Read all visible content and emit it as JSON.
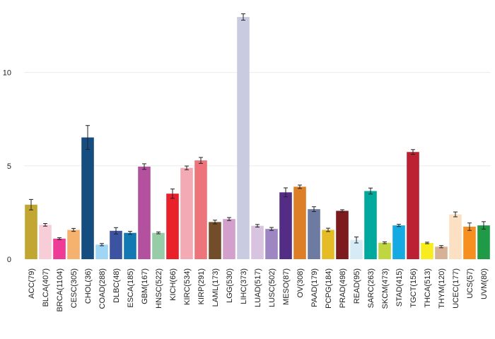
{
  "chart_data": {
    "type": "bar",
    "title": "",
    "xlabel": "",
    "ylabel": "",
    "ylim": [
      0,
      13.2
    ],
    "yticks": [
      0,
      5,
      10
    ],
    "grid": true,
    "legend": "none",
    "categories": [
      "ACC(79)",
      "BLCA(407)",
      "BRCA(1104)",
      "CESC(305)",
      "CHOL(36)",
      "COAD(288)",
      "DLBC(48)",
      "ESCA(185)",
      "GBM(167)",
      "HNSC(522)",
      "KICH(66)",
      "KIRC(534)",
      "KIRP(291)",
      "LAML(173)",
      "LGG(530)",
      "LIHC(373)",
      "LUAD(517)",
      "LUSC(502)",
      "MESO(87)",
      "OV(308)",
      "PAAD(179)",
      "PCPG(184)",
      "PRAD(498)",
      "READ(95)",
      "SARC(263)",
      "SKCM(473)",
      "STAD(415)",
      "TGCT(156)",
      "THCA(513)",
      "THYM(120)",
      "UCEC(177)",
      "UCS(57)",
      "UVM(80)"
    ],
    "values": [
      2.92,
      1.84,
      1.1,
      1.57,
      6.52,
      0.78,
      1.52,
      1.41,
      4.96,
      1.41,
      3.51,
      4.89,
      5.29,
      1.99,
      2.15,
      12.97,
      1.79,
      1.62,
      3.58,
      3.88,
      2.68,
      1.57,
      2.59,
      1.03,
      3.65,
      0.88,
      1.81,
      5.74,
      0.87,
      0.67,
      2.4,
      1.74,
      1.81
    ],
    "errors": [
      0.28,
      0.07,
      0.05,
      0.08,
      0.64,
      0.06,
      0.17,
      0.08,
      0.15,
      0.05,
      0.25,
      0.1,
      0.16,
      0.1,
      0.08,
      0.17,
      0.07,
      0.08,
      0.24,
      0.09,
      0.13,
      0.09,
      0.06,
      0.16,
      0.16,
      0.05,
      0.06,
      0.13,
      0.04,
      0.06,
      0.13,
      0.2,
      0.2
    ],
    "colors": [
      "#c2a632",
      "#f7cdd8",
      "#ee3b95",
      "#f5b16e",
      "#154d80",
      "#9fd6f5",
      "#3b53a0",
      "#1279b2",
      "#b3519f",
      "#97cca8",
      "#e8212a",
      "#f4aab4",
      "#ed747a",
      "#724d29",
      "#d3a0cc",
      "#c9cce0",
      "#d8c3e0",
      "#9d86c2",
      "#532c86",
      "#dd7f26",
      "#6d7aa1",
      "#e5bc25",
      "#7d1a1d",
      "#d6ebf5",
      "#00a99d",
      "#bfd641",
      "#16aae2",
      "#bb2033",
      "#f7ec1d",
      "#d6b196",
      "#fbe0c3",
      "#f68f1f",
      "#1f9b48"
    ]
  }
}
